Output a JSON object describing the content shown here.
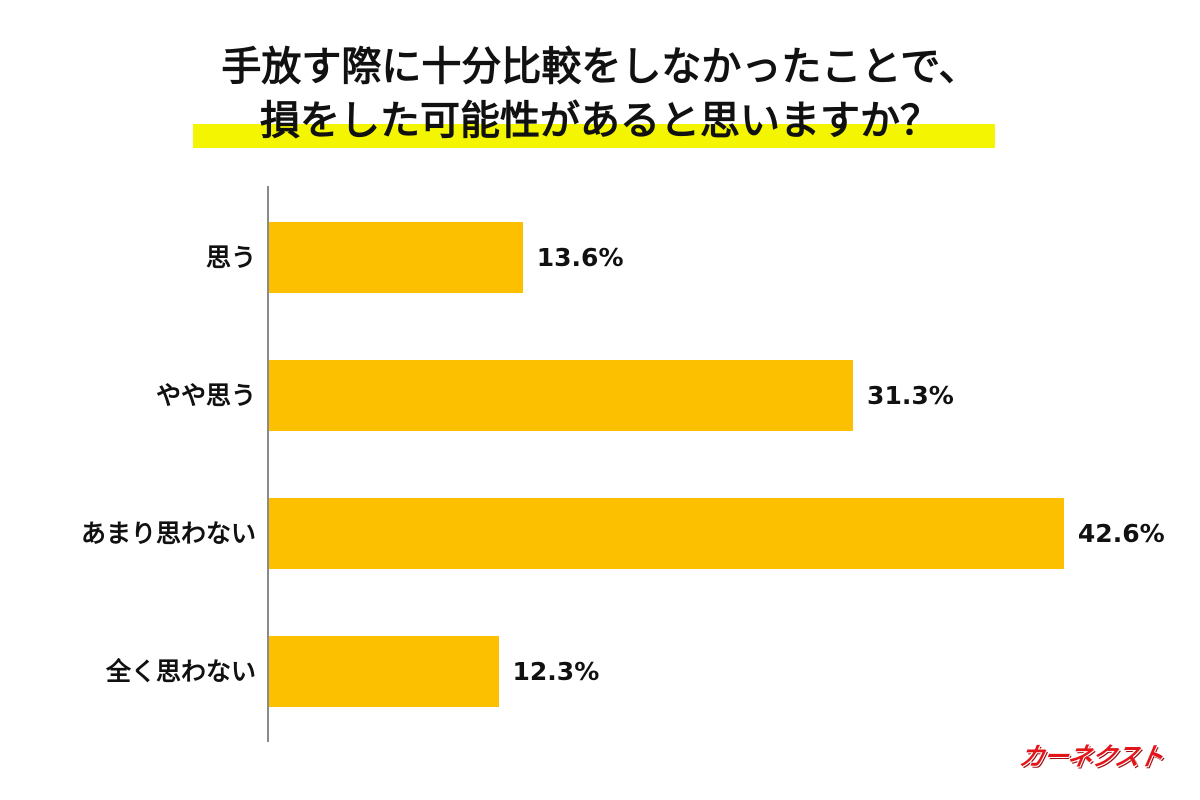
{
  "title": {
    "line1": "手放す際に十分比較をしなかったことで、",
    "line2": "損をした可能性があると思いますか？"
  },
  "colors": {
    "bar": "#fdc000",
    "highlight": "#f3f600",
    "axis": "#8a8a8a",
    "logo": "#e3151a"
  },
  "logo": {
    "text": "カーネクスト"
  },
  "chart_data": {
    "type": "bar",
    "orientation": "horizontal",
    "title": "手放す際に十分比較をしなかったことで、損をした可能性があると思いますか？",
    "categories": [
      "思う",
      "やや思う",
      "あまり思わない",
      "全く思わない"
    ],
    "values": [
      13.6,
      31.3,
      42.6,
      12.3
    ],
    "value_labels": [
      "13.6%",
      "31.3%",
      "42.6%",
      "12.3%"
    ],
    "xlabel": "",
    "ylabel": "",
    "unit": "%",
    "grid": false,
    "legend": "none"
  }
}
